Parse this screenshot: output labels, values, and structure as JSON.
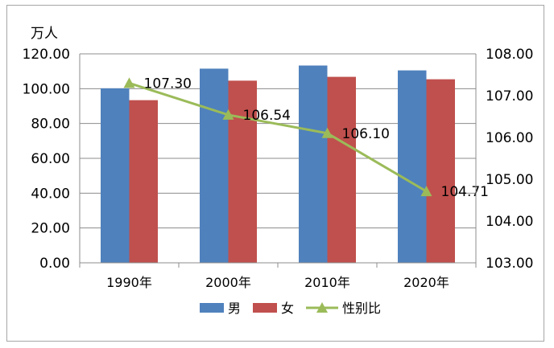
{
  "chart_data": {
    "type": "bar",
    "categories": [
      "1990年",
      "2000年",
      "2010年",
      "2020年"
    ],
    "unit_label": "万人",
    "y_left": {
      "min": 0,
      "max": 120,
      "step": 20,
      "tick_format": 2
    },
    "y_right": {
      "min": 103,
      "max": 108,
      "step": 1,
      "tick_format": 2
    },
    "grid": true,
    "legend_position": "bottom",
    "series": [
      {
        "name": "男",
        "type": "bar",
        "axis": "left",
        "color": "#4f81bd",
        "values": [
          100.2,
          111.5,
          113.3,
          110.5
        ]
      },
      {
        "name": "女",
        "type": "bar",
        "axis": "left",
        "color": "#c0504d",
        "values": [
          93.4,
          104.6,
          106.8,
          105.4
        ]
      },
      {
        "name": "性别比",
        "type": "line",
        "axis": "right",
        "color": "#9bbb59",
        "values": [
          107.3,
          106.54,
          106.1,
          104.71
        ],
        "labels": [
          "107.30",
          "106.54",
          "106.10",
          "104.71"
        ]
      }
    ]
  }
}
